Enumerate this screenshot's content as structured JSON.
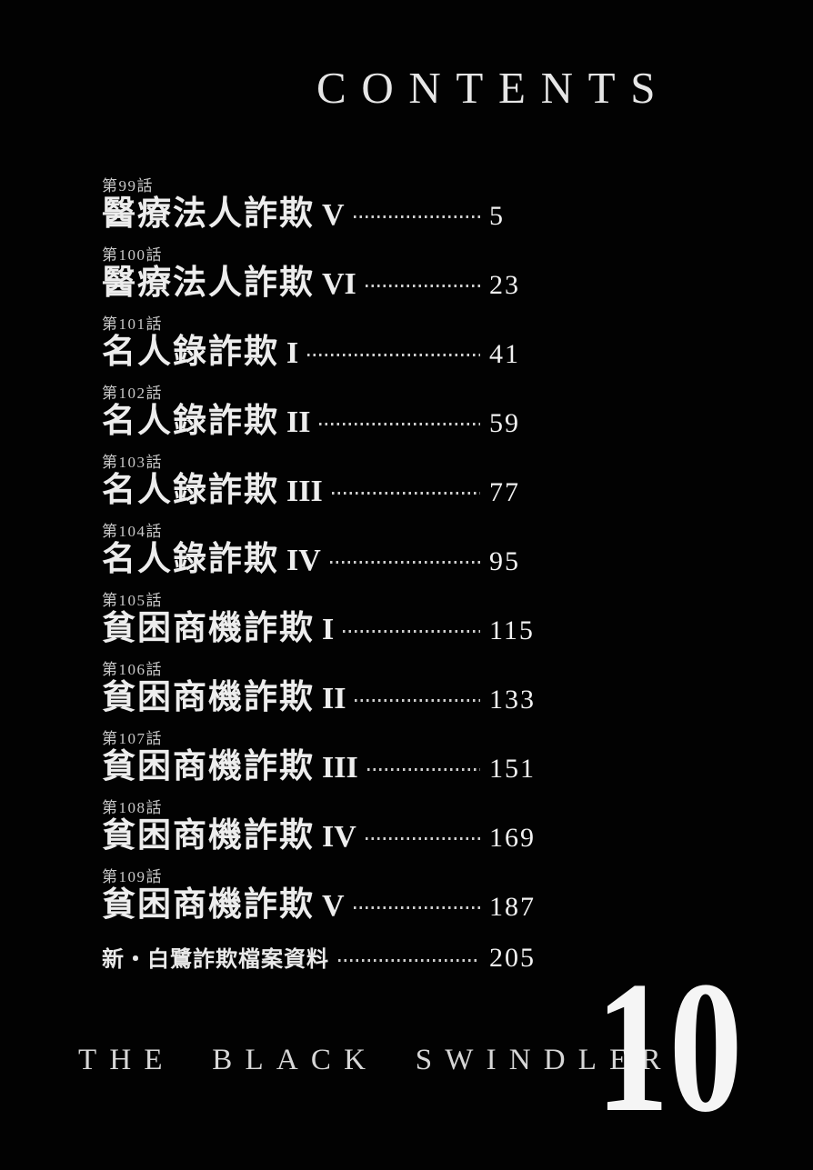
{
  "header": {
    "title": "CONTENTS"
  },
  "toc": {
    "entries": [
      {
        "chapter": "第99話",
        "title": "醫療法人詐欺",
        "numeral": "V",
        "page": "5"
      },
      {
        "chapter": "第100話",
        "title": "醫療法人詐欺",
        "numeral": "VI",
        "page": "23"
      },
      {
        "chapter": "第101話",
        "title": "名人錄詐欺",
        "numeral": "I",
        "page": "41"
      },
      {
        "chapter": "第102話",
        "title": "名人錄詐欺",
        "numeral": "II",
        "page": "59"
      },
      {
        "chapter": "第103話",
        "title": "名人錄詐欺",
        "numeral": "III",
        "page": "77"
      },
      {
        "chapter": "第104話",
        "title": "名人錄詐欺",
        "numeral": "IV",
        "page": "95"
      },
      {
        "chapter": "第105話",
        "title": "貧困商機詐欺",
        "numeral": "I",
        "page": "115"
      },
      {
        "chapter": "第106話",
        "title": "貧困商機詐欺",
        "numeral": "II",
        "page": "133"
      },
      {
        "chapter": "第107話",
        "title": "貧困商機詐欺",
        "numeral": "III",
        "page": "151"
      },
      {
        "chapter": "第108話",
        "title": "貧困商機詐欺",
        "numeral": "IV",
        "page": "169"
      },
      {
        "chapter": "第109話",
        "title": "貧困商機詐欺",
        "numeral": "V",
        "page": "187"
      }
    ],
    "appendix": {
      "title": "新・白鷺詐欺檔案資料",
      "page": "205"
    }
  },
  "footer": {
    "series_title": "THE BLACK SWINDLER",
    "volume_number": "10"
  },
  "colors": {
    "background": "#020202",
    "title_text": "#ededed",
    "chapter_label_text": "#c9c9c9",
    "page_number_text": "#f2f2f2",
    "leader_dots": "#cfcfcf"
  }
}
